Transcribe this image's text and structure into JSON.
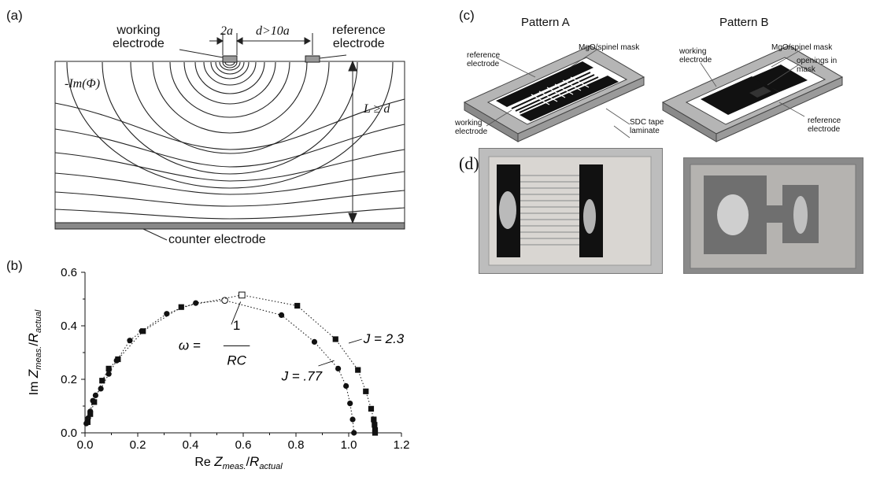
{
  "figure": {
    "panel_a": {
      "label": "(a)",
      "working_electrode": "working\nelectrode",
      "reference_electrode": "reference\nelectrode",
      "width_label": "2a",
      "gap_label": "d>10a",
      "potential_label": "-Im(Φ)",
      "depth_label": "L ≥ d",
      "counter_electrode": "counter electrode"
    },
    "panel_b": {
      "label": "(b)"
    },
    "panel_c": {
      "label": "(c)",
      "pattern_a": "Pattern A",
      "pattern_b": "Pattern B",
      "mask_a": "MgO/spinel mask",
      "mask_b": "MgO/spinel mask",
      "ref_electrode_a": "reference\nelectrode",
      "working_electrode_a": "working\nelectrode",
      "sdc_label": "SDC tape\nlaminate",
      "working_electrode_b": "working\nelectrode",
      "openings_label": "openings in\nmask",
      "ref_electrode_b": "reference\nelectrode"
    },
    "panel_d": {
      "label": "(d)"
    }
  },
  "chart_data": {
    "type": "scatter",
    "xlabel": "Re Z_meas./R_actual",
    "ylabel": "Im Z_meas./R_actual",
    "xlim": [
      0,
      1.2
    ],
    "ylim": [
      0,
      0.6
    ],
    "xticks": [
      "0.0",
      "0.2",
      "0.4",
      "0.6",
      "0.8",
      "1.0",
      "1.2"
    ],
    "yticks": [
      "0.0",
      "0.2",
      "0.4",
      "0.6"
    ],
    "annotation_omega": "ω =",
    "annotation_num": "1",
    "annotation_den": "RC",
    "series": [
      {
        "name": "J = .77",
        "marker": "circle",
        "points": [
          [
            0.005,
            0.035
          ],
          [
            0.012,
            0.055
          ],
          [
            0.02,
            0.08
          ],
          [
            0.03,
            0.12
          ],
          [
            0.04,
            0.14
          ],
          [
            0.06,
            0.165
          ],
          [
            0.09,
            0.22
          ],
          [
            0.12,
            0.27
          ],
          [
            0.17,
            0.345
          ],
          [
            0.215,
            0.38
          ],
          [
            0.31,
            0.445
          ],
          [
            0.42,
            0.485
          ],
          [
            0.745,
            0.44
          ],
          [
            0.87,
            0.34
          ],
          [
            0.96,
            0.24
          ],
          [
            0.99,
            0.175
          ],
          [
            1.005,
            0.11
          ],
          [
            1.015,
            0.05
          ],
          [
            1.02,
            0.0
          ]
        ],
        "highlight": [
          0.53,
          0.495
        ]
      },
      {
        "name": "J = 2.3",
        "marker": "square",
        "points": [
          [
            0.01,
            0.04
          ],
          [
            0.02,
            0.07
          ],
          [
            0.035,
            0.115
          ],
          [
            0.065,
            0.195
          ],
          [
            0.09,
            0.24
          ],
          [
            0.125,
            0.275
          ],
          [
            0.22,
            0.38
          ],
          [
            0.365,
            0.47
          ],
          [
            0.805,
            0.475
          ],
          [
            0.95,
            0.35
          ],
          [
            1.035,
            0.235
          ],
          [
            1.065,
            0.155
          ],
          [
            1.085,
            0.09
          ],
          [
            1.095,
            0.05
          ],
          [
            1.098,
            0.03
          ],
          [
            1.1,
            0.01
          ],
          [
            1.1,
            0.0
          ]
        ],
        "highlight": [
          0.595,
          0.515
        ]
      }
    ],
    "label_J1": "J = .77",
    "label_J2": "J = 2.3"
  }
}
